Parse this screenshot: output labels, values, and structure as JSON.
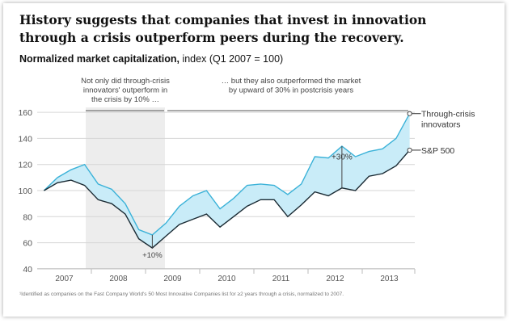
{
  "title": "History suggests that companies that invest in innovation through a crisis outperform peers during the recovery.",
  "subtitle_bold": "Normalized market capitalization,",
  "subtitle_rest": " index (Q1 2007 = 100)",
  "footnote": "¹Identified as companies on the Fast Company World's 50 Most Innovative Companies list for ≥2 years through a crisis, normalized to 2007.",
  "chart_data": {
    "type": "line",
    "title": "Normalized market capitalization, index (Q1 2007 = 100)",
    "x_unit": "quarter",
    "years": [
      "2007",
      "2008",
      "2009",
      "2010",
      "2011",
      "2012",
      "2013"
    ],
    "ylim": [
      40,
      160
    ],
    "yticks": [
      40,
      60,
      80,
      100,
      120,
      140,
      160
    ],
    "grid": true,
    "fill_between": true,
    "shaded_period": "2008",
    "series": [
      {
        "name": "Through-crisis innovators",
        "color": "#3bb2d8",
        "values": [
          100,
          110,
          116,
          120,
          105,
          101,
          90,
          70,
          66,
          75,
          88,
          96,
          100,
          86,
          94,
          104,
          105,
          104,
          97,
          105,
          126,
          125,
          134,
          126,
          130,
          132,
          140,
          159
        ]
      },
      {
        "name": "S&P 500",
        "color": "#1a2a33",
        "values": [
          100,
          106,
          108,
          104,
          93,
          90,
          82,
          63,
          56,
          65,
          74,
          78,
          82,
          72,
          80,
          88,
          93,
          93,
          80,
          89,
          99,
          96,
          102,
          100,
          111,
          113,
          119,
          131
        ]
      }
    ],
    "annotations": [
      {
        "lines": [
          "Not only did through-crisis",
          "innovators' outperform in",
          "the crisis by 10% …"
        ]
      },
      {
        "lines": [
          "… but they also outperformed the market",
          "by upward of 30% in postcrisis years"
        ]
      },
      {
        "label": "+10%"
      },
      {
        "label": "+30%"
      }
    ],
    "legend_labels": [
      "Through-crisis",
      "innovators",
      "S&P 500"
    ]
  },
  "colors": {
    "fill": "#c9ecf8",
    "shade": "#ededed",
    "grid": "#d6d6d6"
  }
}
